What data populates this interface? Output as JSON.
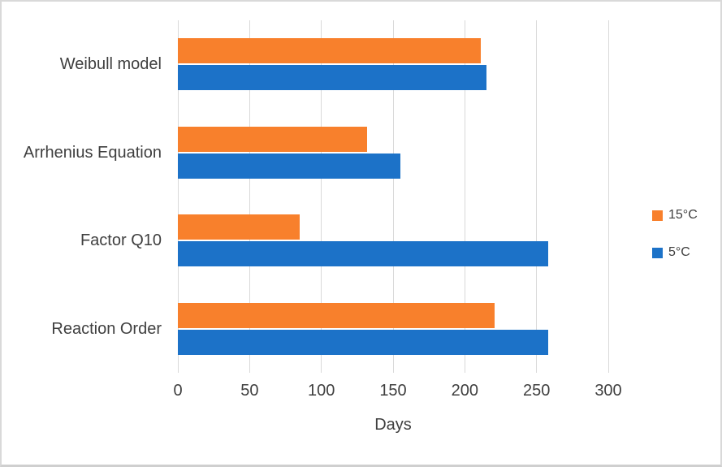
{
  "chart_data": {
    "type": "bar",
    "orientation": "horizontal",
    "title": "",
    "xlabel": "Days",
    "ylabel": "",
    "categories": [
      "Weibull model",
      "Arrhenius Equation",
      "Factor Q10",
      "Reaction Order"
    ],
    "series": [
      {
        "name": "15°C",
        "color": "#F8802C",
        "values": [
          211,
          132,
          85,
          221
        ]
      },
      {
        "name": "5°C",
        "color": "#1C72C8",
        "values": [
          215,
          155,
          258,
          258
        ]
      }
    ],
    "xlim": [
      0,
      300
    ],
    "xticks": [
      0,
      50,
      100,
      150,
      200,
      250,
      300
    ],
    "grid": "vertical-major-only",
    "gridline_color": "#D9D9D9",
    "text_color": "#3F3F3F",
    "legend_position": "right"
  }
}
